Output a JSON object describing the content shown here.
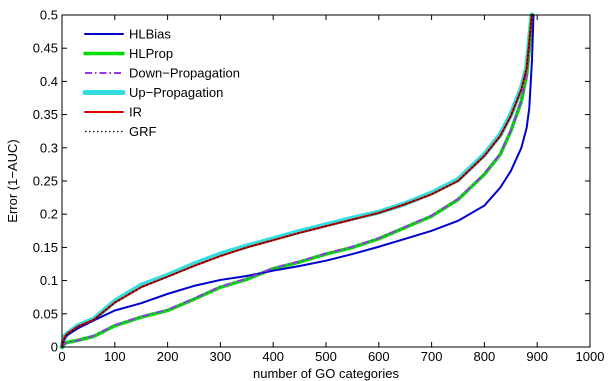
{
  "chart_data": {
    "type": "line",
    "title": "",
    "xlabel": "number of GO categories",
    "ylabel": "Error (1−AUC)",
    "xlim": [
      0,
      1000
    ],
    "ylim": [
      0,
      0.5
    ],
    "xticks": [
      0,
      100,
      200,
      300,
      400,
      500,
      600,
      700,
      800,
      900,
      1000
    ],
    "yticks": [
      0,
      0.05,
      0.1,
      0.15,
      0.2,
      0.25,
      0.3,
      0.35,
      0.4,
      0.45,
      0.5
    ],
    "xtick_labels": [
      "0",
      "100",
      "200",
      "300",
      "400",
      "500",
      "600",
      "700",
      "800",
      "900",
      "1000"
    ],
    "ytick_labels": [
      "0",
      "0.05",
      "0.1",
      "0.15",
      "0.2",
      "0.25",
      "0.3",
      "0.35",
      "0.4",
      "0.45",
      "0.5"
    ],
    "grid": false,
    "legend_position": "top-left",
    "series": [
      {
        "name": "HLBias",
        "color": "#0000cc",
        "style": "solid",
        "x": [
          0,
          5,
          10,
          30,
          60,
          100,
          150,
          200,
          250,
          300,
          350,
          400,
          450,
          500,
          550,
          600,
          650,
          700,
          750,
          800,
          830,
          850,
          870,
          880,
          885,
          890,
          893
        ],
        "y": [
          0,
          0.013,
          0.018,
          0.028,
          0.04,
          0.055,
          0.066,
          0.08,
          0.092,
          0.101,
          0.107,
          0.115,
          0.122,
          0.13,
          0.14,
          0.151,
          0.163,
          0.175,
          0.19,
          0.213,
          0.24,
          0.265,
          0.3,
          0.33,
          0.36,
          0.43,
          0.5
        ]
      },
      {
        "name": "HLProp",
        "color": "#00dd00",
        "style": "solid",
        "x": [
          0,
          5,
          10,
          30,
          60,
          100,
          150,
          200,
          250,
          300,
          350,
          400,
          450,
          500,
          550,
          600,
          650,
          700,
          750,
          800,
          830,
          850,
          870,
          880,
          885,
          890
        ],
        "y": [
          0,
          0.005,
          0.007,
          0.01,
          0.016,
          0.032,
          0.045,
          0.055,
          0.072,
          0.09,
          0.102,
          0.118,
          0.128,
          0.14,
          0.15,
          0.163,
          0.18,
          0.197,
          0.222,
          0.26,
          0.29,
          0.325,
          0.37,
          0.41,
          0.45,
          0.5
        ]
      },
      {
        "name": "Down−Propagation",
        "color": "#9933ee",
        "style": "dashdot",
        "x": [
          0,
          5,
          10,
          30,
          60,
          100,
          150,
          200,
          250,
          300,
          350,
          400,
          450,
          500,
          550,
          600,
          650,
          700,
          750,
          800,
          830,
          850,
          870,
          880,
          885,
          890
        ],
        "y": [
          0,
          0.005,
          0.007,
          0.01,
          0.017,
          0.033,
          0.046,
          0.056,
          0.073,
          0.091,
          0.103,
          0.119,
          0.129,
          0.141,
          0.151,
          0.164,
          0.181,
          0.198,
          0.223,
          0.261,
          0.291,
          0.326,
          0.371,
          0.41,
          0.45,
          0.5
        ]
      },
      {
        "name": "Up−Propagation",
        "color": "#33dddd",
        "style": "solid",
        "x": [
          0,
          5,
          10,
          30,
          60,
          100,
          150,
          200,
          250,
          300,
          350,
          400,
          450,
          500,
          550,
          600,
          650,
          700,
          750,
          800,
          830,
          850,
          870,
          880,
          885,
          890
        ],
        "y": [
          0,
          0.016,
          0.02,
          0.032,
          0.042,
          0.069,
          0.093,
          0.108,
          0.125,
          0.14,
          0.152,
          0.163,
          0.174,
          0.184,
          0.194,
          0.203,
          0.216,
          0.232,
          0.252,
          0.29,
          0.32,
          0.35,
          0.39,
          0.42,
          0.46,
          0.5
        ]
      },
      {
        "name": "IR",
        "color": "#dd0000",
        "style": "solid",
        "x": [
          0,
          5,
          10,
          30,
          60,
          100,
          150,
          200,
          250,
          300,
          350,
          400,
          450,
          500,
          550,
          600,
          650,
          700,
          750,
          800,
          830,
          850,
          870,
          880,
          885,
          890
        ],
        "y": [
          0,
          0.015,
          0.02,
          0.031,
          0.041,
          0.067,
          0.09,
          0.106,
          0.122,
          0.137,
          0.15,
          0.161,
          0.172,
          0.182,
          0.192,
          0.202,
          0.215,
          0.23,
          0.25,
          0.288,
          0.318,
          0.348,
          0.388,
          0.42,
          0.46,
          0.5
        ]
      },
      {
        "name": "GRF",
        "color": "#000000",
        "style": "dotted",
        "x": [
          0,
          5,
          10,
          30,
          60,
          100,
          150,
          200,
          250,
          300,
          350,
          400,
          450,
          500,
          550,
          600,
          650,
          700,
          750,
          800,
          830,
          850,
          870,
          880,
          885,
          890
        ],
        "y": [
          0,
          0.015,
          0.02,
          0.031,
          0.041,
          0.067,
          0.09,
          0.106,
          0.122,
          0.137,
          0.15,
          0.161,
          0.172,
          0.182,
          0.192,
          0.202,
          0.215,
          0.23,
          0.25,
          0.288,
          0.318,
          0.348,
          0.388,
          0.42,
          0.46,
          0.5
        ]
      }
    ]
  }
}
